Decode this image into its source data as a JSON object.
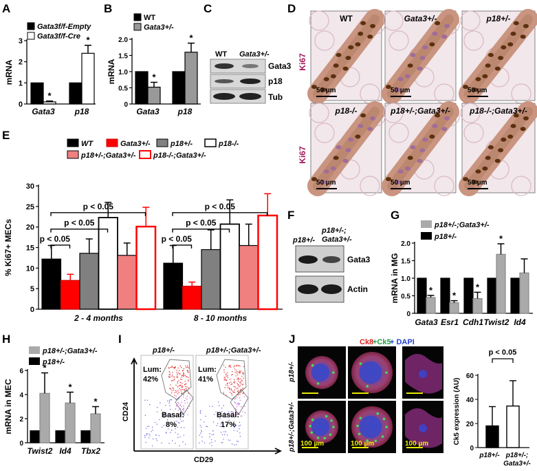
{
  "figure": {
    "panel_letters": [
      "A",
      "B",
      "C",
      "D",
      "E",
      "F",
      "G",
      "H",
      "I",
      "J"
    ]
  },
  "chart_data": [
    {
      "panel": "A",
      "type": "bar",
      "ylabel": "mRNA",
      "ylim": [
        0,
        3
      ],
      "yticks": [
        "0",
        "1",
        "2",
        "3"
      ],
      "categories": [
        "Gata3",
        "p18"
      ],
      "series": [
        {
          "name": "Gata3f/f-Empty",
          "values": [
            1.0,
            1.0
          ],
          "errors": [
            0,
            0
          ],
          "color": "#000000"
        },
        {
          "name": "Gata3f/f-Cre",
          "values": [
            0.1,
            2.4
          ],
          "errors": [
            0.04,
            0.38
          ],
          "color": "#ffffff"
        }
      ],
      "significance": [
        "*",
        "*"
      ]
    },
    {
      "panel": "B",
      "type": "bar",
      "ylabel": "mRNA",
      "ylim": [
        0,
        2.0
      ],
      "yticks": [
        "0",
        "0.5",
        "1.0",
        "1.5",
        "2.0"
      ],
      "categories": [
        "Gata3",
        "p18"
      ],
      "series": [
        {
          "name": "WT",
          "values": [
            1.0,
            1.0
          ],
          "errors": [
            0,
            0
          ],
          "color": "#000000"
        },
        {
          "name": "Gata3+/-",
          "values": [
            0.52,
            1.6
          ],
          "errors": [
            0.15,
            0.28
          ],
          "color": "#999999"
        }
      ],
      "significance": [
        "*",
        "*"
      ]
    },
    {
      "panel": "E",
      "type": "bar",
      "ylabel": "% Ki67+ MECs",
      "ylim": [
        0,
        30
      ],
      "yticks": [
        "0",
        "5",
        "10",
        "15",
        "20",
        "25",
        "30"
      ],
      "categories": [
        "2 - 4 months",
        "8 - 10 months"
      ],
      "series": [
        {
          "name": "WT",
          "values": [
            12.2,
            11.2
          ],
          "errors": [
            3.3,
            4.3
          ],
          "color": "#000000"
        },
        {
          "name": "Gata3+/-",
          "values": [
            7.0,
            5.6
          ],
          "errors": [
            1.5,
            1.0
          ],
          "color": "#ff0000"
        },
        {
          "name": "p18+/-",
          "values": [
            13.6,
            14.5
          ],
          "errors": [
            3.5,
            4.8
          ],
          "color": "#808080"
        },
        {
          "name": "p18-/-",
          "values": [
            22.3,
            20.7
          ],
          "errors": [
            3.7,
            5.9
          ],
          "color": "#ffffff"
        },
        {
          "name": "p18+/-;Gata3+/-",
          "values": [
            13.1,
            15.5
          ],
          "errors": [
            3.0,
            5.2
          ],
          "color": "#f08080"
        },
        {
          "name": "p18-/-;Gata3+/-",
          "values": [
            20.1,
            22.8
          ],
          "errors": [
            4.7,
            5.3
          ],
          "color": "#ffffff"
        }
      ],
      "brackets": [
        "p < 0.05",
        "p < 0.05",
        "p < 0.05",
        "p < 0.05",
        "p < 0.05",
        "p < 0.05"
      ]
    },
    {
      "panel": "G",
      "type": "bar",
      "ylabel": "mRNA in MG",
      "ylim": [
        0,
        2.0
      ],
      "yticks": [
        "0",
        "0.5",
        "1.0",
        "1.5",
        "2.0"
      ],
      "categories": [
        "Gata3",
        "Esr1",
        "Cdh1",
        "Twist2",
        "Id4"
      ],
      "series": [
        {
          "name": "p18+/-",
          "values": [
            1.0,
            1.0,
            1.0,
            1.0,
            1.0
          ],
          "errors": [
            0,
            0,
            0,
            0,
            0
          ],
          "color": "#000000"
        },
        {
          "name": "p18+/-;Gata3+/-",
          "values": [
            0.45,
            0.3,
            0.42,
            1.68,
            1.15
          ],
          "errors": [
            0.06,
            0.06,
            0.18,
            0.3,
            0.4
          ],
          "color": "#aaaaaa"
        }
      ],
      "significance": [
        "*",
        "*",
        "*",
        "*",
        ""
      ]
    },
    {
      "panel": "H",
      "type": "bar",
      "ylabel": "mRNA in MEC",
      "ylim": [
        0,
        6
      ],
      "yticks": [
        "0",
        "2",
        "4",
        "6"
      ],
      "categories": [
        "Twist2",
        "Id4",
        "Tbx2"
      ],
      "series": [
        {
          "name": "p18+/-",
          "values": [
            1.0,
            1.0,
            1.0
          ],
          "errors": [
            0,
            0,
            0
          ],
          "color": "#000000"
        },
        {
          "name": "p18+/-;Gata3+/-",
          "values": [
            4.1,
            3.3,
            2.4
          ],
          "errors": [
            1.7,
            0.9,
            0.6
          ],
          "color": "#aaaaaa"
        }
      ],
      "significance": [
        "*",
        "*",
        "*"
      ]
    },
    {
      "panel": "J",
      "type": "bar",
      "ylabel": "Ck5 expression (AU)",
      "ylim": [
        0,
        60
      ],
      "yticks": [
        "0",
        "20",
        "40",
        "60"
      ],
      "categories": [
        "p18+/-",
        "p18+/-;Gata3+/-"
      ],
      "series": [
        {
          "name": "Ck5 expression",
          "values": [
            18,
            34.5
          ],
          "errors": [
            16,
            21
          ],
          "colors": [
            "#000000",
            "#ffffff"
          ]
        }
      ],
      "bracket": "p < 0.05"
    }
  ],
  "panelC": {
    "lanes": [
      "WT",
      "Gata3+/-"
    ],
    "bands": [
      "Gata3",
      "p18",
      "Tub"
    ]
  },
  "panelD": {
    "side_label": "Ki67",
    "images": [
      {
        "label": "WT",
        "scale": "50 µm"
      },
      {
        "label": "Gata3+/-",
        "scale": "50 µm"
      },
      {
        "label": "p18+/-",
        "scale": "50 µm"
      },
      {
        "label": "p18-/-",
        "scale": "50 µm"
      },
      {
        "label": "p18+/-;Gata3+/-",
        "scale": "50 µm"
      },
      {
        "label": "p18-/-;Gata3+/-",
        "scale": "50 µm"
      }
    ]
  },
  "panelF": {
    "lanes": [
      "p18+/-",
      "p18+/-;",
      "Gata3+/-"
    ],
    "bands": [
      "Gata3",
      "Actin"
    ]
  },
  "panelI": {
    "plots": [
      {
        "title": "p18+/-",
        "lum": "Lum:",
        "lum_pct": "42%",
        "basal": "Basal:",
        "basal_pct": "8%"
      },
      {
        "title": "p18+/-;Gata3+/-",
        "lum": "Lum:",
        "lum_pct": "41%",
        "basal": "Basal:",
        "basal_pct": "17%"
      }
    ],
    "xlabel": "CD29",
    "ylabel": "CD24"
  },
  "panelJ": {
    "stain_ck8": "Ck8",
    "stain_ck5": "+Ck5",
    "stain_dapi": "+ DAPI",
    "row_labels": [
      "p18+/-",
      "p18+/-;Gata3+/-"
    ],
    "scale": "100 µm"
  }
}
